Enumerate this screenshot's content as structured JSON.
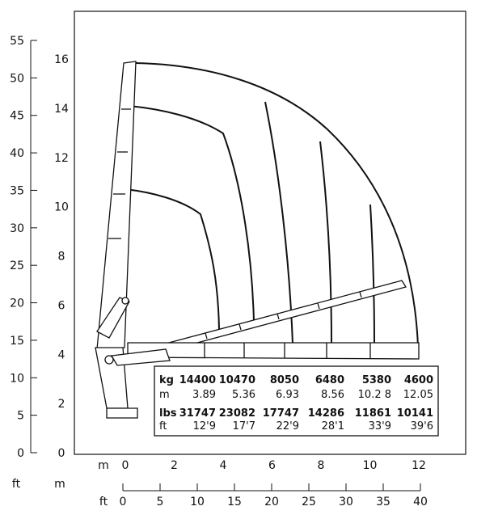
{
  "left_axis": {
    "unit_ft": "ft",
    "unit_m": "m",
    "ft_ticks": [
      "0",
      "5",
      "10",
      "15",
      "20",
      "25",
      "30",
      "35",
      "40",
      "45",
      "50",
      "55"
    ],
    "m_ticks": [
      "0",
      "2",
      "4",
      "6",
      "8",
      "10",
      "12",
      "14",
      "16"
    ]
  },
  "bottom_axis": {
    "unit_m": "m",
    "unit_ft": "ft",
    "m_ticks": [
      "0",
      "2",
      "4",
      "6",
      "8",
      "10",
      "12"
    ],
    "ft_ticks": [
      "0",
      "5",
      "10",
      "15",
      "20",
      "25",
      "30",
      "35",
      "40"
    ]
  },
  "capacity_table": {
    "row_labels": [
      "kg",
      "m",
      "lbs",
      "ft"
    ],
    "kg": [
      "14400",
      "10470",
      "8050",
      "6480",
      "5380",
      "4600"
    ],
    "m": [
      "3.89",
      "5.36",
      "6.93",
      "8.56",
      "10.2 8",
      "12.05"
    ],
    "lbs": [
      "31747",
      "23082",
      "17747",
      "14286",
      "11861",
      "10141"
    ],
    "ft": [
      "12'9",
      "17'7",
      "22'9",
      "28'1",
      "33'9",
      "39'6"
    ]
  },
  "colors": {
    "line": "#111111",
    "background": "#ffffff"
  },
  "icons": [
    "crane-icon"
  ]
}
